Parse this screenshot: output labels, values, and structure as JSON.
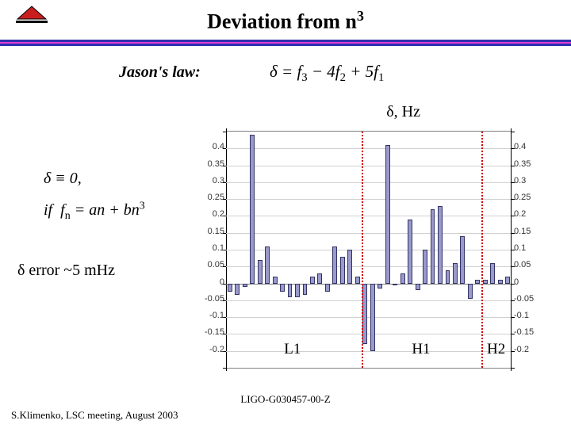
{
  "title_html": "Deviation from n<sup>3</sup>",
  "subtitle": "Jason's law:",
  "main_formula_html": "<i>δ</i> = <i>f</i><sub>3</sub> − 4<i>f</i><sub>2</sub> + 5<i>f</i><sub>1</sub>",
  "side_formula_html": "<i>δ</i> ≡ 0,<br>if &nbsp;<i>f<sub>n</sub></i> = <i>an</i> + <i>bn</i><sup>3</sup>",
  "delta_hz": "δ, Hz",
  "error_text": "δ error ~5 mHz",
  "doc_id": "LIGO-G030457-00-Z",
  "footer": "S.Klimenko, LSC meeting, August 2003",
  "chart": {
    "type": "bar",
    "bar_fill": "#9999cc",
    "bar_border": "#333366",
    "grid_color": "#d0d0d0",
    "axis_color": "#000000",
    "background_color": "#ffffff",
    "divider_color": "#d00000",
    "ylim": [
      -0.25,
      0.45
    ],
    "yticks": [
      -0.25,
      -0.2,
      -0.15,
      -0.1,
      -0.05,
      0,
      0.05,
      0.1,
      0.15,
      0.2,
      0.25,
      0.3,
      0.35,
      0.4,
      0.45
    ],
    "ytick_labels_left": [
      "",
      "-0.2",
      "-0.15",
      "-0.1",
      "-0.05",
      "0",
      "0.05",
      "0.1",
      "0.15",
      "0.2",
      "0.25",
      "0.3",
      "0.35",
      "0.4",
      ""
    ],
    "ytick_labels_right": [
      "",
      "-0.2",
      "-0.15",
      "-0.1",
      "-0.05",
      "0",
      "0.05",
      "0.1",
      "0.15",
      "0.2",
      "0.25",
      "0.3",
      "0.35",
      "0.4",
      ""
    ],
    "values": [
      -0.025,
      -0.035,
      -0.01,
      0.44,
      0.07,
      0.11,
      0.02,
      -0.025,
      -0.04,
      -0.04,
      -0.035,
      0.02,
      0.03,
      -0.025,
      0.11,
      0.08,
      0.1,
      0.02,
      -0.18,
      -0.2,
      -0.015,
      0.41,
      -0.005,
      0.03,
      0.19,
      -0.02,
      0.1,
      0.22,
      0.23,
      0.04,
      0.06,
      0.14,
      -0.045,
      0.01,
      0.01,
      0.06,
      0.01,
      0.02
    ],
    "n_bars": 38,
    "divider_positions": [
      18,
      34
    ],
    "region_labels": [
      {
        "text": "L1",
        "center_bar": 9
      },
      {
        "text": "H1",
        "center_bar": 26
      },
      {
        "text": "H2",
        "center_bar": 36
      }
    ],
    "tick_fontsize": 11,
    "label_fontsize": 19
  }
}
